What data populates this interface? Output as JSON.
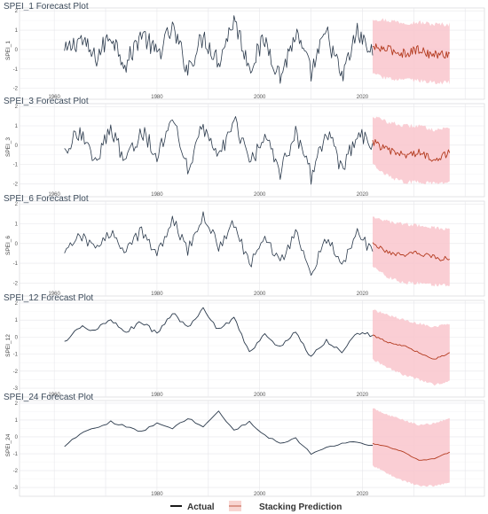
{
  "chart_data": [
    {
      "type": "line",
      "title": "SPEI_1 Forecast Plot",
      "ylabel": "SPEI_1",
      "xlim": [
        1956,
        2041
      ],
      "ylim": [
        -2.2,
        2.1
      ],
      "xticks": [
        1960,
        1980,
        2000,
        2020
      ],
      "yticks": [
        -2,
        -1,
        0,
        1,
        2
      ],
      "actual_range": [
        1962,
        2022
      ],
      "forecast_range": [
        2022,
        2037
      ],
      "series": [
        {
          "name": "Actual",
          "color": "#2b3a4c",
          "style": "line",
          "x": [
            1962,
            1965,
            1968,
            1971,
            1974,
            1977,
            1980,
            1983,
            1986,
            1989,
            1992,
            1995,
            1998,
            2001,
            2004,
            2007,
            2010,
            2013,
            2016,
            2019,
            2022
          ],
          "y": [
            -0.2,
            0.6,
            -0.5,
            0.8,
            -0.8,
            0.9,
            -0.3,
            1.1,
            -1.0,
            0.7,
            -0.6,
            1.6,
            -0.9,
            0.5,
            -1.4,
            0.8,
            -1.2,
            0.9,
            -1.5,
            0.9,
            -0.3
          ]
        },
        {
          "name": "Stacking Prediction",
          "color": "#b33a1e",
          "style": "line",
          "x": [
            2022,
            2025,
            2028,
            2031,
            2034,
            2037
          ],
          "y": [
            0.1,
            0.0,
            -0.2,
            0.0,
            -0.3,
            -0.2
          ]
        }
      ],
      "band": {
        "x": [
          2022,
          2025,
          2028,
          2031,
          2034,
          2037
        ],
        "lower": [
          -1.3,
          -1.5,
          -1.6,
          -1.6,
          -1.7,
          -1.7
        ],
        "upper": [
          1.6,
          1.5,
          1.4,
          1.4,
          1.3,
          1.3
        ],
        "color": "#f9c6cc"
      }
    },
    {
      "type": "line",
      "title": "SPEI_3 Forecast Plot",
      "ylabel": "SPEI_3",
      "xlim": [
        1956,
        2041
      ],
      "ylim": [
        -2.3,
        2.1
      ],
      "xticks": [
        1960,
        1980,
        2000,
        2020
      ],
      "yticks": [
        -2,
        -1,
        0,
        1,
        2
      ],
      "actual_range": [
        1962,
        2022
      ],
      "forecast_range": [
        2022,
        2037
      ],
      "series": [
        {
          "name": "Actual",
          "color": "#2b3a4c",
          "style": "line",
          "x": [
            1962,
            1965,
            1968,
            1971,
            1974,
            1977,
            1980,
            1983,
            1986,
            1989,
            1992,
            1995,
            1998,
            2001,
            2004,
            2007,
            2010,
            2013,
            2016,
            2019,
            2022
          ],
          "y": [
            -0.3,
            0.7,
            -0.8,
            0.9,
            -0.9,
            0.8,
            -0.5,
            1.4,
            -1.1,
            1.0,
            -0.7,
            1.3,
            -1.0,
            0.4,
            -1.5,
            0.7,
            -1.6,
            0.8,
            -1.2,
            0.6,
            0.1
          ]
        },
        {
          "name": "Stacking Prediction",
          "color": "#b33a1e",
          "style": "line",
          "x": [
            2022,
            2025,
            2028,
            2031,
            2034,
            2037
          ],
          "y": [
            0.2,
            -0.3,
            -0.5,
            -0.4,
            -0.7,
            -0.4
          ]
        }
      ],
      "band": {
        "x": [
          2022,
          2025,
          2028,
          2031,
          2034,
          2037
        ],
        "lower": [
          -1.0,
          -1.6,
          -1.9,
          -1.9,
          -2.0,
          -1.9
        ],
        "upper": [
          1.5,
          1.2,
          1.0,
          1.0,
          0.8,
          0.9
        ],
        "color": "#f9c6cc"
      }
    },
    {
      "type": "line",
      "title": "SPEI_6 Forecast Plot",
      "ylabel": "SPEI_6",
      "xlim": [
        1956,
        2041
      ],
      "ylim": [
        -2.3,
        2.1
      ],
      "xticks": [
        1960,
        1980,
        2000,
        2020
      ],
      "yticks": [
        -2,
        -1,
        0,
        1,
        2
      ],
      "actual_range": [
        1962,
        2022
      ],
      "forecast_range": [
        2022,
        2037
      ],
      "series": [
        {
          "name": "Actual",
          "color": "#2b3a4c",
          "style": "line",
          "x": [
            1962,
            1965,
            1968,
            1971,
            1974,
            1977,
            1980,
            1983,
            1986,
            1989,
            1992,
            1995,
            1998,
            2001,
            2004,
            2007,
            2010,
            2013,
            2016,
            2019,
            2022
          ],
          "y": [
            -0.6,
            0.4,
            -0.3,
            0.6,
            -0.4,
            0.7,
            -0.6,
            1.3,
            -0.4,
            1.5,
            -0.2,
            1.1,
            -1.1,
            0.3,
            -1.0,
            0.5,
            -1.5,
            0.3,
            -1.1,
            0.5,
            -0.4
          ]
        },
        {
          "name": "Stacking Prediction",
          "color": "#b33a1e",
          "style": "line",
          "x": [
            2022,
            2025,
            2028,
            2031,
            2034,
            2037
          ],
          "y": [
            0.0,
            -0.4,
            -0.6,
            -0.5,
            -0.7,
            -0.8
          ]
        }
      ],
      "band": {
        "x": [
          2022,
          2025,
          2028,
          2031,
          2034,
          2037
        ],
        "lower": [
          -1.2,
          -1.7,
          -2.0,
          -2.0,
          -2.1,
          -2.1
        ],
        "upper": [
          1.4,
          1.1,
          1.0,
          0.9,
          0.8,
          0.7
        ],
        "color": "#f9c6cc"
      }
    },
    {
      "type": "line",
      "title": "SPEI_12 Forecast Plot",
      "ylabel": "SPEI_12",
      "xlim": [
        1956,
        2041
      ],
      "ylim": [
        -3.1,
        2.1
      ],
      "xticks": [
        1960,
        1980,
        2000,
        2020
      ],
      "yticks": [
        -3,
        -2,
        -1,
        0,
        1,
        2
      ],
      "actual_range": [
        1962,
        2022
      ],
      "forecast_range": [
        2022,
        2037
      ],
      "series": [
        {
          "name": "Actual",
          "color": "#2b3a4c",
          "style": "line",
          "x": [
            1962,
            1965,
            1968,
            1971,
            1974,
            1977,
            1980,
            1983,
            1986,
            1989,
            1992,
            1995,
            1998,
            2001,
            2004,
            2007,
            2010,
            2013,
            2016,
            2019,
            2022
          ],
          "y": [
            -0.3,
            0.6,
            0.4,
            1.0,
            0.3,
            0.9,
            0.2,
            1.4,
            0.6,
            1.7,
            0.4,
            1.1,
            -0.9,
            0.2,
            -0.6,
            0.4,
            -1.2,
            -0.2,
            -0.8,
            0.3,
            0.1
          ]
        },
        {
          "name": "Stacking Prediction",
          "color": "#b33a1e",
          "style": "line",
          "x": [
            2022,
            2025,
            2028,
            2031,
            2034,
            2037
          ],
          "y": [
            0.1,
            -0.3,
            -0.5,
            -0.9,
            -1.3,
            -0.9
          ]
        }
      ],
      "band": {
        "x": [
          2022,
          2025,
          2028,
          2031,
          2034,
          2037
        ],
        "lower": [
          -1.3,
          -1.8,
          -2.2,
          -2.5,
          -2.8,
          -2.6
        ],
        "upper": [
          1.6,
          1.3,
          1.0,
          0.8,
          0.6,
          0.8
        ],
        "color": "#f9c6cc"
      }
    },
    {
      "type": "line",
      "title": "SPEI_24 Forecast Plot",
      "ylabel": "SPEI_24",
      "xlim": [
        1956,
        2041
      ],
      "ylim": [
        -3.1,
        2.1
      ],
      "xticks": [
        1980,
        2000,
        2020
      ],
      "yticks": [
        -3,
        -2,
        -1,
        0,
        1,
        2
      ],
      "actual_range": [
        1962,
        2022
      ],
      "forecast_range": [
        2022,
        2037
      ],
      "series": [
        {
          "name": "Actual",
          "color": "#2b3a4c",
          "style": "line",
          "x": [
            1962,
            1965,
            1968,
            1971,
            1974,
            1977,
            1980,
            1983,
            1986,
            1989,
            1992,
            1995,
            1998,
            2001,
            2004,
            2007,
            2010,
            2013,
            2016,
            2019,
            2022
          ],
          "y": [
            -0.6,
            0.2,
            0.5,
            0.9,
            0.6,
            0.3,
            0.8,
            0.5,
            1.1,
            0.6,
            1.5,
            0.4,
            0.9,
            0.1,
            -0.4,
            -0.1,
            -1.0,
            -0.6,
            -0.4,
            -0.3,
            -0.5
          ]
        },
        {
          "name": "Stacking Prediction",
          "color": "#b33a1e",
          "style": "line",
          "x": [
            2022,
            2025,
            2028,
            2031,
            2034,
            2037
          ],
          "y": [
            -0.4,
            -0.6,
            -0.9,
            -1.4,
            -1.3,
            -0.9
          ]
        }
      ],
      "band": {
        "x": [
          2022,
          2025,
          2028,
          2031,
          2034,
          2037
        ],
        "lower": [
          -1.7,
          -2.2,
          -2.6,
          -2.9,
          -2.9,
          -2.7
        ],
        "upper": [
          1.7,
          1.3,
          1.0,
          0.7,
          0.8,
          1.1
        ],
        "color": "#f9c6cc"
      }
    }
  ],
  "legend": {
    "placement": "bottom-center",
    "items": [
      {
        "label": "Actual",
        "color": "#1a1a1a",
        "kind": "line"
      },
      {
        "label": "Stacking Prediction",
        "color": "#f4b9b2",
        "kind": "band"
      }
    ]
  }
}
